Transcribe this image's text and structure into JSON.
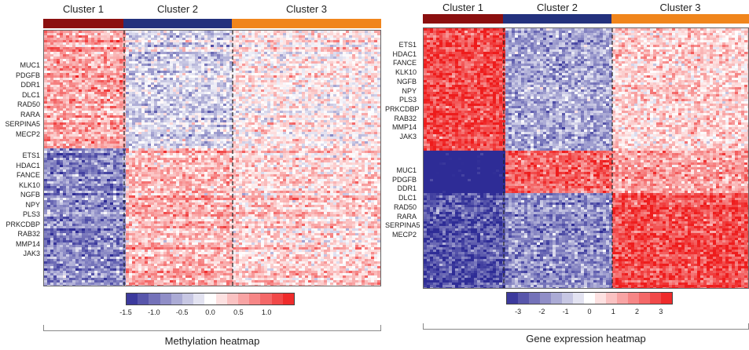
{
  "chart_data": [
    {
      "type": "heatmap",
      "title": "",
      "caption": "Methylation heatmap",
      "clusters": [
        {
          "label": "Cluster 1",
          "color": "#8b0f0f"
        },
        {
          "label": "Cluster 2",
          "color": "#23317d"
        },
        {
          "label": "Cluster 3",
          "color": "#f0851c"
        }
      ],
      "gene_groups": [
        [
          "MUC1",
          "PDGFB",
          "DDR1",
          "DLC1",
          "RAD50",
          "RARA",
          "SERPINA5",
          "MECP2"
        ],
        [
          "ETS1",
          "HDAC1",
          "FANCE",
          "KLK10",
          "NGFB",
          "NPY",
          "PLS3",
          "PRKCDBP",
          "RAB32",
          "MMP14",
          "JAK3"
        ]
      ],
      "colorbar": {
        "ticks": [
          "-1.5",
          "-1.0",
          "-0.5",
          "0.0",
          "0.5",
          "1.0"
        ],
        "min": -1.5,
        "max": 1.5,
        "low_color": "#2e2c96",
        "mid_color": "#ffffff",
        "high_color": "#ee1c1c"
      },
      "pattern": [
        {
          "rows": "top",
          "cluster_values": [
            0.6,
            -0.3,
            0.1
          ]
        },
        {
          "rows": "bottom",
          "cluster_values": [
            -0.8,
            0.5,
            0.3
          ]
        }
      ]
    },
    {
      "type": "heatmap",
      "title": "",
      "caption": "Gene expression heatmap",
      "clusters": [
        {
          "label": "Cluster 1",
          "color": "#8b0f0f"
        },
        {
          "label": "Cluster 2",
          "color": "#23317d"
        },
        {
          "label": "Cluster 3",
          "color": "#f0851c"
        }
      ],
      "gene_groups": [
        [
          "ETS1",
          "HDAC1",
          "FANCE",
          "KLK10",
          "NGFB",
          "NPY",
          "PLS3",
          "PRKCDBP",
          "RAB32",
          "MMP14",
          "JAK3"
        ],
        [
          "MUC1",
          "PDGFB",
          "DDR1",
          "DLC1",
          "RAD50",
          "RARA",
          "SERPINA5",
          "MECP2"
        ]
      ],
      "colorbar": {
        "ticks": [
          "-3",
          "-2",
          "-1",
          "0",
          "1",
          "2",
          "3"
        ],
        "min": -3.5,
        "max": 3.5,
        "low_color": "#2e2c96",
        "mid_color": "#ffffff",
        "high_color": "#ee1c1c"
      },
      "pattern": [
        {
          "rows": "top",
          "cluster_values": [
            1.2,
            -0.6,
            0.3
          ]
        },
        {
          "rows": "middle",
          "cluster_values": [
            -2.0,
            1.0,
            0.6
          ]
        },
        {
          "rows": "bottom",
          "cluster_values": [
            -1.2,
            -0.8,
            1.2
          ]
        }
      ]
    }
  ]
}
